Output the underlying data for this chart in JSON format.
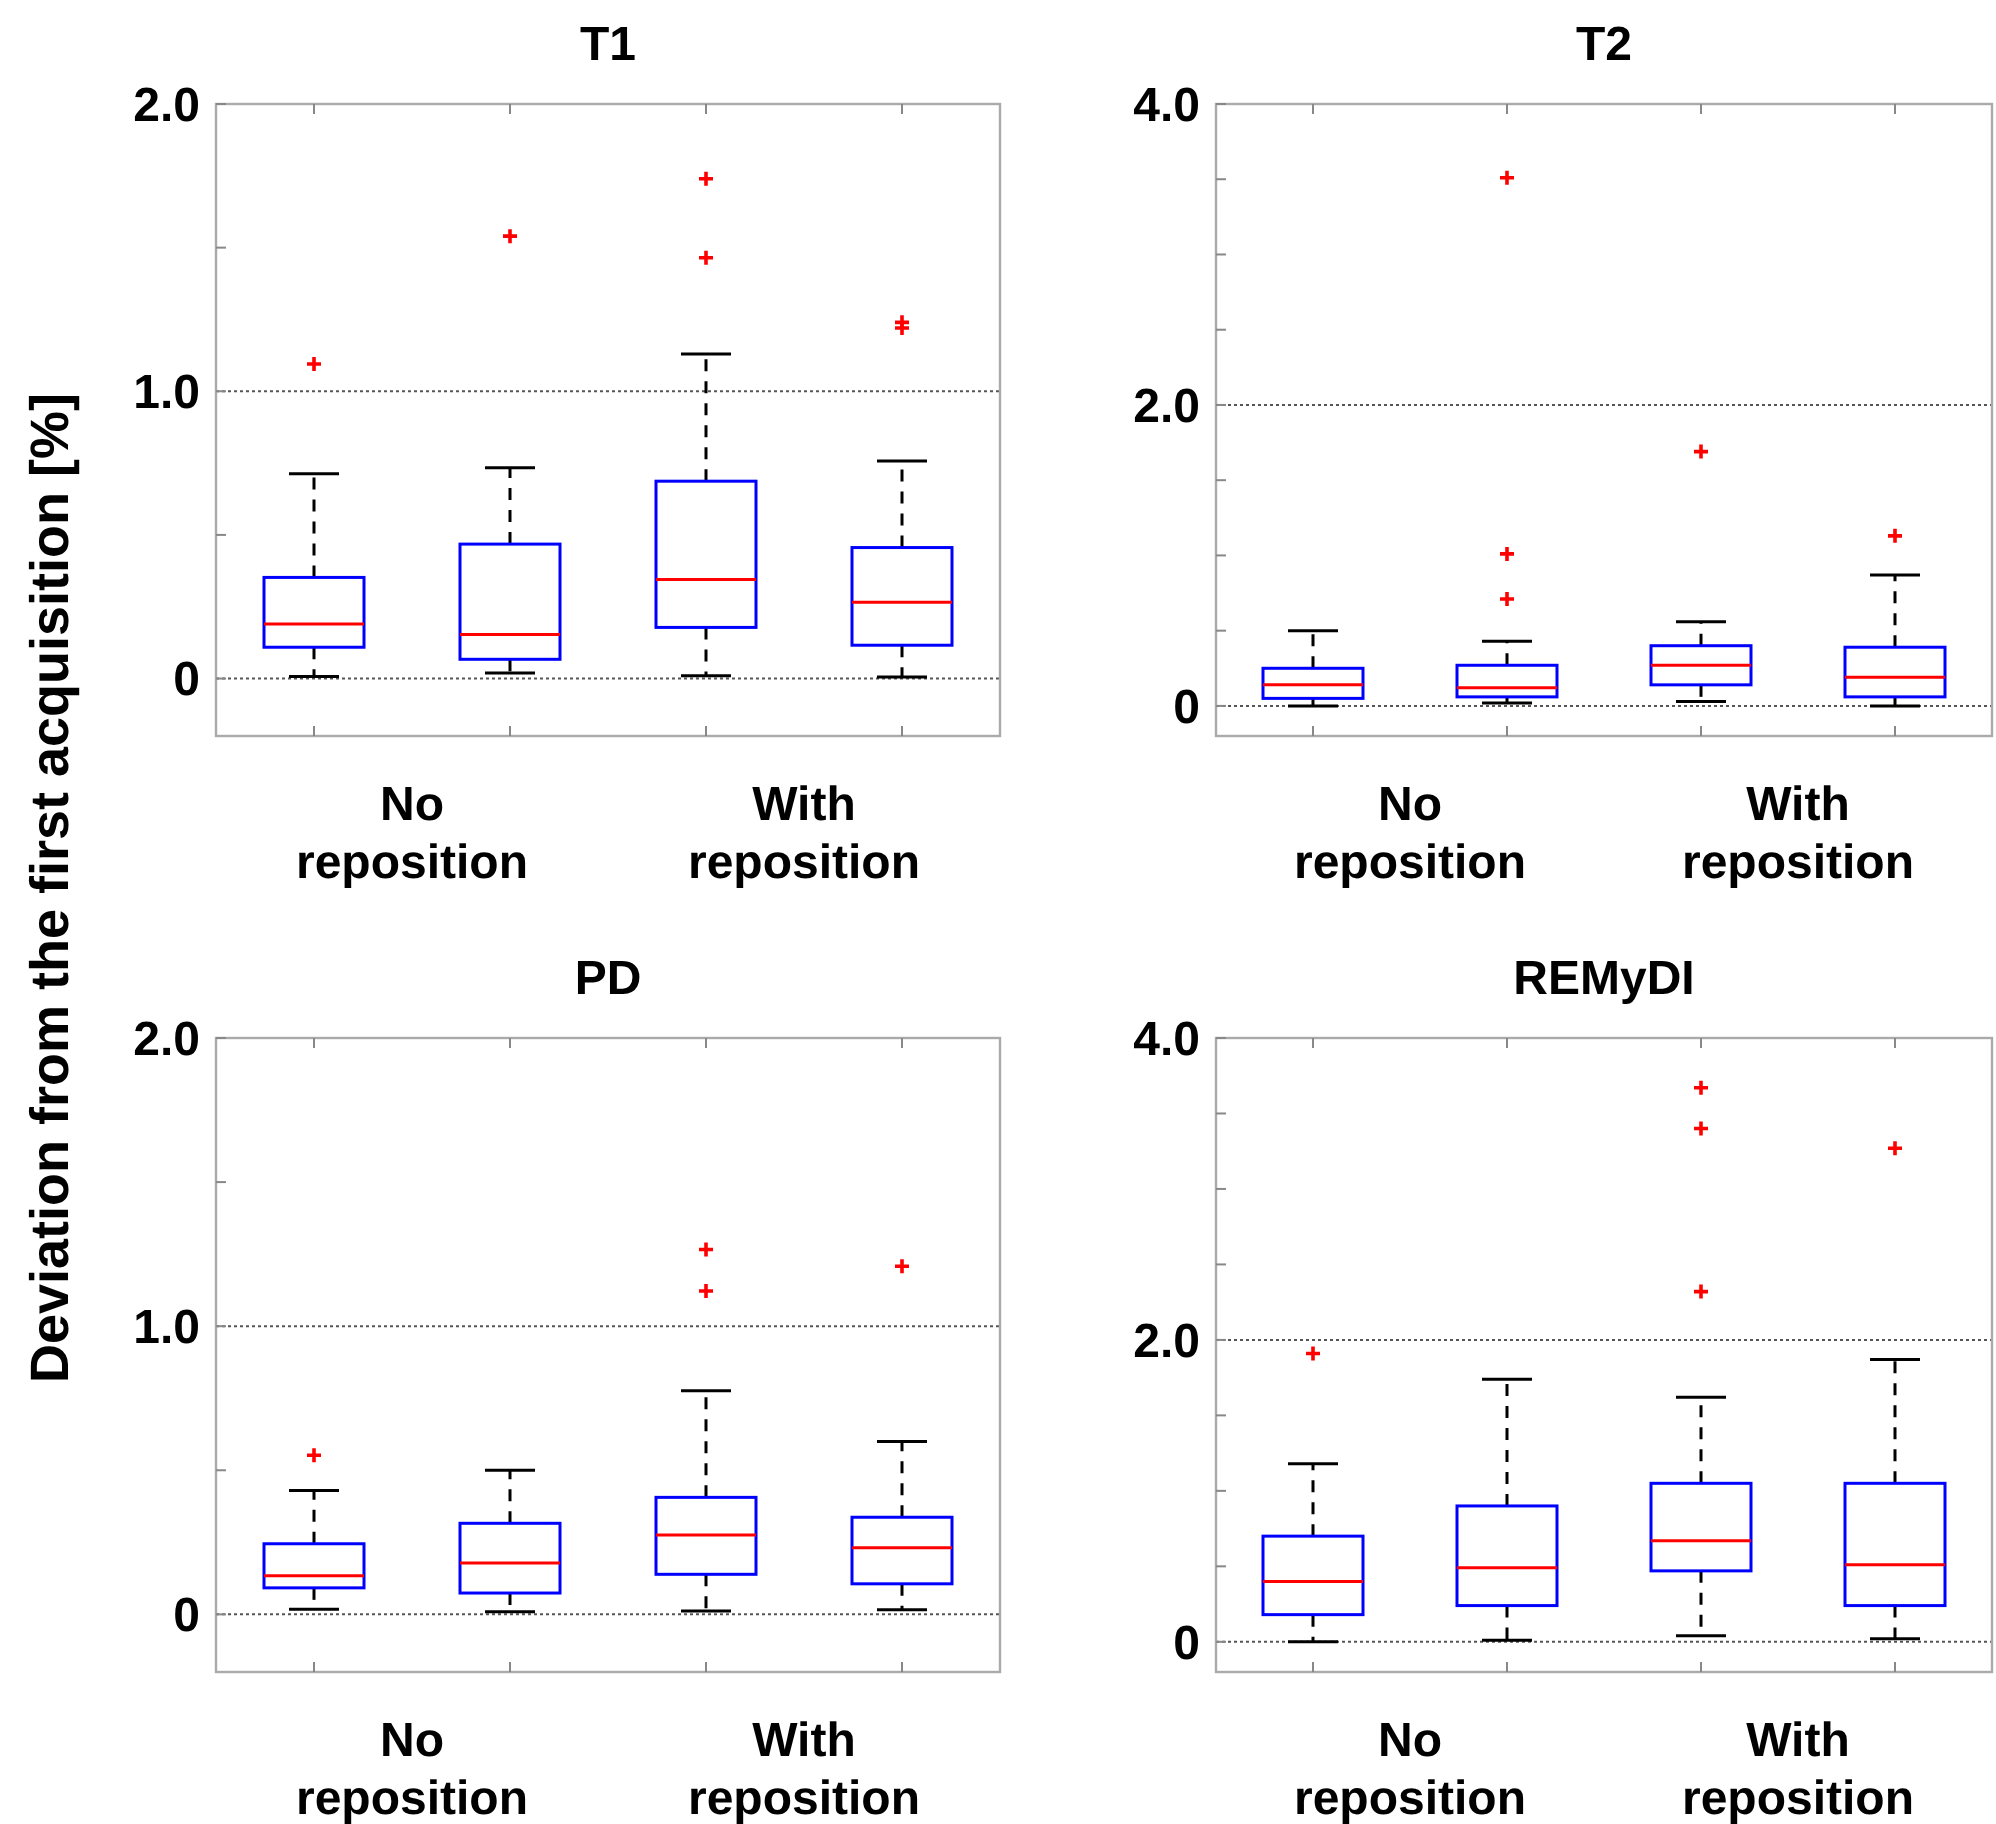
{
  "chart_data": [
    {
      "type": "box",
      "title": "T1",
      "ylabel": "Deviation from the first acquisition [%]",
      "categories": [
        null,
        null,
        null,
        null
      ],
      "annotations": [
        "No reposition",
        "With reposition"
      ],
      "ylim": [
        -0.2,
        2.0
      ],
      "yticks": [
        {
          "value": 0,
          "label": "0"
        },
        {
          "value": 0.5,
          "label": null
        },
        {
          "value": 1.0,
          "label": "1.0"
        },
        {
          "value": 1.5,
          "label": null
        },
        {
          "value": 2.0,
          "label": "2.0"
        }
      ],
      "ref_lines": [
        {
          "axis": "y",
          "value": 0,
          "line_style": "dotted"
        },
        {
          "axis": "y",
          "value": 1.0,
          "line_style": "dotted"
        }
      ],
      "series": [
        {
          "color": "#0000ff",
          "boxes": [
            {
              "low": 0.007,
              "q1": 0.109,
              "median": 0.19,
              "q3": 0.352,
              "high": 0.713,
              "outliers": [
                1.095
              ]
            },
            {
              "low": 0.019,
              "q1": 0.067,
              "median": 0.153,
              "q3": 0.468,
              "high": 0.734,
              "outliers": [
                1.54
              ]
            },
            {
              "low": 0.01,
              "q1": 0.178,
              "median": 0.345,
              "q3": 0.687,
              "high": 1.13,
              "outliers": [
                1.465,
                1.74
              ]
            },
            {
              "low": 0.005,
              "q1": 0.116,
              "median": 0.266,
              "q3": 0.456,
              "high": 0.757,
              "outliers": [
                1.22,
                1.24
              ]
            }
          ]
        }
      ]
    },
    {
      "type": "box",
      "title": "T2",
      "categories": [
        null,
        null,
        null,
        null
      ],
      "annotations": [
        "No reposition",
        "With reposition"
      ],
      "ylim": [
        -0.2,
        4.0
      ],
      "yticks": [
        {
          "value": 0,
          "label": "0"
        },
        {
          "value": 0.5,
          "label": null
        },
        {
          "value": 1.0,
          "label": null
        },
        {
          "value": 1.5,
          "label": null
        },
        {
          "value": 2.0,
          "label": "2.0"
        },
        {
          "value": 2.5,
          "label": null
        },
        {
          "value": 3.0,
          "label": null
        },
        {
          "value": 3.5,
          "label": null
        },
        {
          "value": 4.0,
          "label": "4.0"
        }
      ],
      "ref_lines": [
        {
          "axis": "y",
          "value": 0,
          "line_style": "dotted"
        },
        {
          "axis": "y",
          "value": 2.0,
          "line_style": "dotted"
        }
      ],
      "series": [
        {
          "color": "#0000ff",
          "boxes": [
            {
              "low": 0.0,
              "q1": 0.05,
              "median": 0.14,
              "q3": 0.25,
              "high": 0.5
            },
            {
              "low": 0.02,
              "q1": 0.06,
              "median": 0.12,
              "q3": 0.27,
              "high": 0.43,
              "outliers": [
                0.71,
                1.01,
                3.51
              ]
            },
            {
              "low": 0.03,
              "q1": 0.14,
              "median": 0.27,
              "q3": 0.4,
              "high": 0.56,
              "outliers": [
                1.69
              ]
            },
            {
              "low": 0.0,
              "q1": 0.06,
              "median": 0.19,
              "q3": 0.39,
              "high": 0.87,
              "outliers": [
                1.13
              ]
            }
          ]
        }
      ]
    },
    {
      "type": "box",
      "title": "PD",
      "categories": [
        null,
        null,
        null,
        null
      ],
      "annotations": [
        "No reposition",
        "With reposition"
      ],
      "ylim": [
        -0.2,
        2.0
      ],
      "yticks": [
        {
          "value": 0,
          "label": "0"
        },
        {
          "value": 0.5,
          "label": null
        },
        {
          "value": 1.0,
          "label": "1.0"
        },
        {
          "value": 1.5,
          "label": null
        },
        {
          "value": 2.0,
          "label": "2.0"
        }
      ],
      "ref_lines": [
        {
          "axis": "y",
          "value": 0,
          "line_style": "dotted"
        },
        {
          "axis": "y",
          "value": 1.0,
          "line_style": "dotted"
        }
      ],
      "series": [
        {
          "color": "#0000ff",
          "boxes": [
            {
              "low": 0.018,
              "q1": 0.092,
              "median": 0.134,
              "q3": 0.245,
              "high": 0.43,
              "outliers": [
                0.552
              ]
            },
            {
              "low": 0.009,
              "q1": 0.074,
              "median": 0.178,
              "q3": 0.316,
              "high": 0.5
            },
            {
              "low": 0.012,
              "q1": 0.139,
              "median": 0.275,
              "q3": 0.406,
              "high": 0.776,
              "outliers": [
                1.122,
                1.266
              ]
            },
            {
              "low": 0.016,
              "q1": 0.106,
              "median": 0.231,
              "q3": 0.337,
              "high": 0.6,
              "outliers": [
                1.208
              ]
            }
          ]
        }
      ]
    },
    {
      "type": "box",
      "title": "REMyDI",
      "categories": [
        null,
        null,
        null,
        null
      ],
      "annotations": [
        "No reposition",
        "With reposition"
      ],
      "ylim": [
        -0.2,
        4.0
      ],
      "yticks": [
        {
          "value": 0,
          "label": "0"
        },
        {
          "value": 0.5,
          "label": null
        },
        {
          "value": 1.0,
          "label": null
        },
        {
          "value": 1.5,
          "label": null
        },
        {
          "value": 2.0,
          "label": "2.0"
        },
        {
          "value": 2.5,
          "label": null
        },
        {
          "value": 3.0,
          "label": null
        },
        {
          "value": 3.5,
          "label": null
        },
        {
          "value": 4.0,
          "label": "4.0"
        }
      ],
      "ref_lines": [
        {
          "axis": "y",
          "value": 0,
          "line_style": "dotted"
        },
        {
          "axis": "y",
          "value": 2.0,
          "line_style": "dotted"
        }
      ],
      "series": [
        {
          "color": "#0000ff",
          "boxes": [
            {
              "low": 0.0,
              "q1": 0.18,
              "median": 0.4,
              "q3": 0.7,
              "high": 1.18,
              "outliers": [
                1.91
              ]
            },
            {
              "low": 0.01,
              "q1": 0.24,
              "median": 0.49,
              "q3": 0.9,
              "high": 1.74
            },
            {
              "low": 0.04,
              "q1": 0.47,
              "median": 0.67,
              "q3": 1.05,
              "high": 1.62,
              "outliers": [
                2.32,
                3.4,
                3.67
              ]
            },
            {
              "low": 0.02,
              "q1": 0.24,
              "median": 0.51,
              "q3": 1.05,
              "high": 1.87,
              "outliers": [
                3.27
              ]
            }
          ]
        }
      ]
    }
  ]
}
